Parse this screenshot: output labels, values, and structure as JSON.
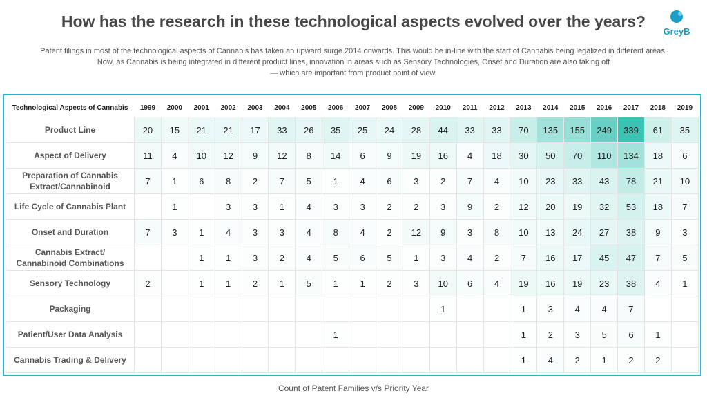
{
  "header": {
    "title": "How has the research in these technological aspects evolved over the years?",
    "subtitle_lines": [
      "Patent filings in most of the technological aspects of Cannabis has taken an upward surge 2014 onwards.  This would be in-line with the start of Cannabis being legalized in different areas.",
      "Now, as Cannabis is being integrated in different product lines, innovation in areas such as Sensory Technologies, Onset and Duration are also taking off",
      "— which are important from product point of view."
    ],
    "logo_text": "GreyB"
  },
  "footer": {
    "text": "Count of Patent Families v/s Priority Year"
  },
  "colors": {
    "frame": "#2bb5c3",
    "heat_low": "#ffffff",
    "heat_high": "#3cc2b2",
    "logo": "#1aa0c8"
  },
  "chart_data": {
    "type": "heatmap",
    "title": "",
    "xlabel": "Count of Patent Families v/s Priority Year",
    "row_header": "Technological Aspects of Cannabis",
    "columns": [
      "1999",
      "2000",
      "2001",
      "2002",
      "2003",
      "2004",
      "2005",
      "2006",
      "2007",
      "2008",
      "2009",
      "2010",
      "2011",
      "2012",
      "2013",
      "2014",
      "2015",
      "2016",
      "2017",
      "2018",
      "2019"
    ],
    "rows": [
      {
        "name": "Product Line",
        "values": [
          20,
          15,
          21,
          21,
          17,
          33,
          26,
          35,
          25,
          24,
          28,
          44,
          33,
          33,
          70,
          135,
          155,
          249,
          339,
          61,
          35
        ]
      },
      {
        "name": "Aspect of Delivery",
        "values": [
          11,
          4,
          10,
          12,
          9,
          12,
          8,
          14,
          6,
          9,
          19,
          16,
          4,
          18,
          30,
          50,
          70,
          110,
          134,
          18,
          6
        ]
      },
      {
        "name": "Preparation of Cannabis Extract/Cannabinoid",
        "values": [
          7,
          1,
          6,
          8,
          2,
          7,
          5,
          1,
          4,
          6,
          3,
          2,
          7,
          4,
          10,
          23,
          33,
          43,
          78,
          21,
          10
        ]
      },
      {
        "name": "Life Cycle of Cannabis Plant",
        "values": [
          null,
          1,
          null,
          3,
          3,
          1,
          4,
          3,
          3,
          2,
          2,
          3,
          9,
          2,
          12,
          20,
          19,
          32,
          53,
          18,
          7
        ]
      },
      {
        "name": "Onset and Duration",
        "values": [
          7,
          3,
          1,
          4,
          3,
          3,
          4,
          8,
          4,
          2,
          12,
          9,
          3,
          8,
          10,
          13,
          24,
          27,
          38,
          9,
          3
        ]
      },
      {
        "name": "Cannabis Extract/ Cannabinoid Combinations",
        "values": [
          null,
          null,
          1,
          1,
          3,
          2,
          4,
          5,
          6,
          5,
          1,
          3,
          4,
          2,
          7,
          16,
          17,
          45,
          47,
          7,
          5
        ]
      },
      {
        "name": "Sensory Technology",
        "values": [
          2,
          null,
          1,
          1,
          2,
          1,
          5,
          1,
          1,
          2,
          3,
          10,
          6,
          4,
          19,
          16,
          19,
          23,
          38,
          4,
          1
        ]
      },
      {
        "name": "Packaging",
        "values": [
          null,
          null,
          null,
          null,
          null,
          null,
          null,
          null,
          null,
          null,
          null,
          1,
          null,
          null,
          1,
          3,
          4,
          4,
          7,
          null,
          null
        ]
      },
      {
        "name": "Patient/User Data Analysis",
        "values": [
          null,
          null,
          null,
          null,
          null,
          null,
          null,
          1,
          null,
          null,
          null,
          null,
          null,
          null,
          1,
          2,
          3,
          5,
          6,
          1,
          null
        ]
      },
      {
        "name": "Cannabis Trading & Delivery",
        "values": [
          null,
          null,
          null,
          null,
          null,
          null,
          null,
          null,
          null,
          null,
          null,
          null,
          null,
          null,
          1,
          4,
          2,
          1,
          2,
          2,
          null
        ]
      }
    ]
  }
}
